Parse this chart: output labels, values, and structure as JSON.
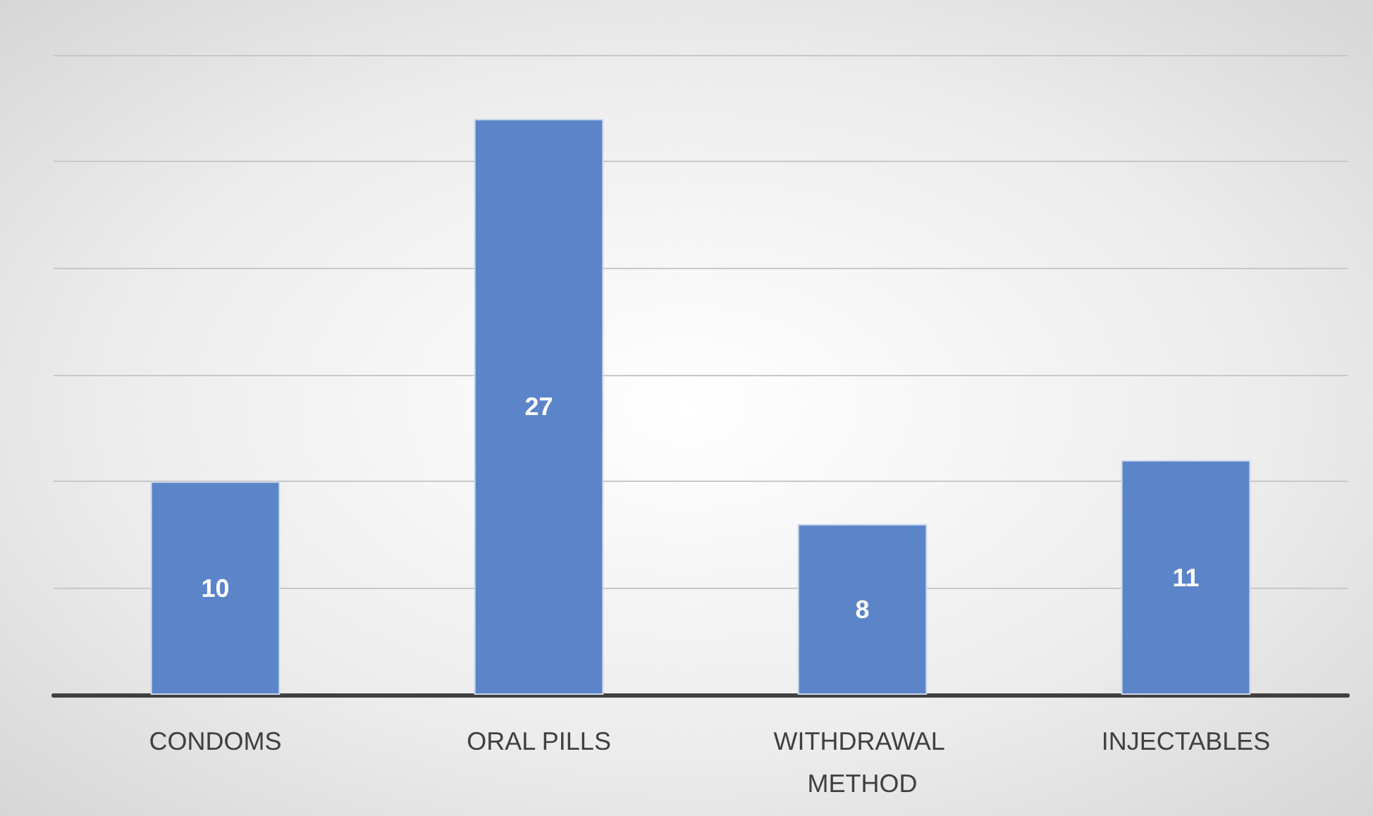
{
  "chart_data": {
    "type": "bar",
    "categories": [
      "CONDOMS",
      "ORAL PILLS",
      "WITHDRAWAL METHOD",
      "INJECTABLES"
    ],
    "values": [
      10,
      27,
      8,
      11
    ],
    "color": "#5b84c9",
    "data_labels": true,
    "grid": "y",
    "tick_labels": "x",
    "ylim": [
      0,
      30
    ],
    "yticks": [
      {
        "value": 0,
        "label": null
      },
      {
        "value": 5,
        "label": null
      },
      {
        "value": 10,
        "label": null
      },
      {
        "value": 15,
        "label": null
      },
      {
        "value": 20,
        "label": null
      },
      {
        "value": 25,
        "label": null
      },
      {
        "value": 30,
        "label": null
      }
    ]
  }
}
